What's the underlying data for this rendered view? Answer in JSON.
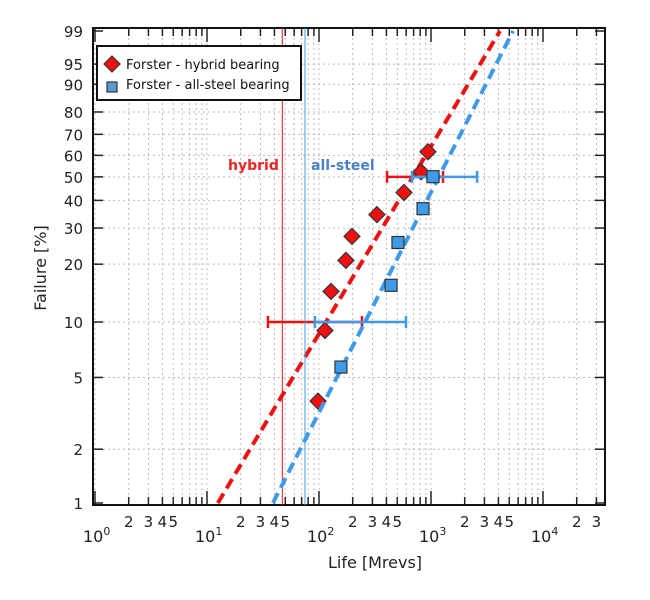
{
  "chart_data": {
    "type": "scatter",
    "xlabel": "Life  [Mrevs]",
    "ylabel": "Failure  [%]",
    "xscale": "log",
    "yscale": "weibull",
    "xlim": [
      1,
      31623
    ],
    "ylim": [
      1,
      99
    ],
    "grid": true,
    "legend_position": "top-left",
    "y_ticks": [
      1,
      2,
      5,
      10,
      20,
      30,
      40,
      50,
      60,
      70,
      80,
      90,
      95,
      99
    ],
    "x_decade_labels": [
      {
        "base": "10",
        "exp": "0"
      },
      {
        "base": "10",
        "exp": "1"
      },
      {
        "base": "10",
        "exp": "2"
      },
      {
        "base": "10",
        "exp": "3"
      },
      {
        "base": "10",
        "exp": "4"
      }
    ],
    "x_minor_labels": [
      "2",
      "3",
      "4",
      "5"
    ],
    "series": [
      {
        "name": "Forster - hybrid bearing",
        "marker": "diamond",
        "color": "#ee1111",
        "points": [
          [
            98,
            3.7
          ],
          [
            113,
            9.0
          ],
          [
            128,
            14.5
          ],
          [
            174,
            20.9
          ],
          [
            197,
            27.4
          ],
          [
            329,
            34.6
          ],
          [
            574,
            43.2
          ],
          [
            815,
            52.3
          ],
          [
            940,
            61.7
          ]
        ],
        "fit_line": [
          [
            12.5,
            1
          ],
          [
            4130,
            99
          ]
        ],
        "error_bars": [
          {
            "y": 10,
            "x_low": 35,
            "x_high": 242
          },
          {
            "y": 50,
            "x_low": 405,
            "x_high": 1280
          }
        ],
        "reference_line_x": 47,
        "reference_label": "hybrid"
      },
      {
        "name": "Forster - all-steel bearing",
        "marker": "square",
        "color": "#3d9be9",
        "points": [
          [
            157,
            5.7
          ],
          [
            440,
            15.6
          ],
          [
            507,
            25.6
          ],
          [
            849,
            36.8
          ],
          [
            1042,
            50.1
          ]
        ],
        "fit_line": [
          [
            38.8,
            1
          ],
          [
            5400,
            99
          ]
        ],
        "error_bars": [
          {
            "y": 10,
            "x_low": 92,
            "x_high": 598
          },
          {
            "y": 50,
            "x_low": 677,
            "x_high": 2580
          }
        ],
        "reference_line_x": 75,
        "reference_label": "all-steel"
      }
    ]
  }
}
